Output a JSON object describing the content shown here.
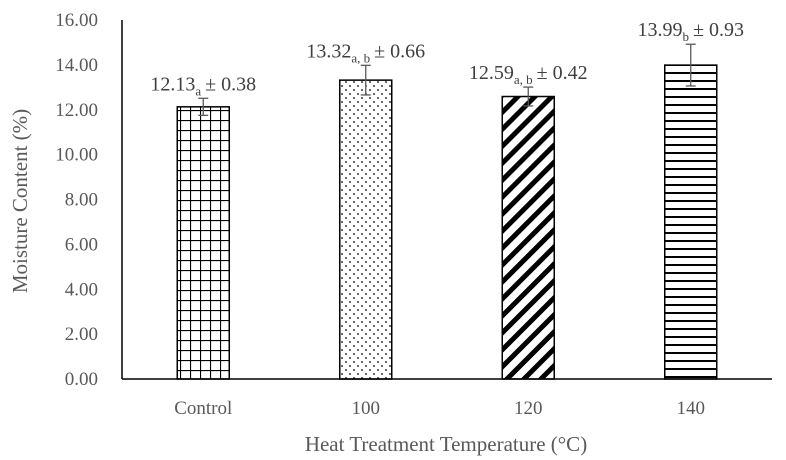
{
  "chart_data": {
    "type": "bar",
    "categories": [
      "Control",
      "100",
      "120",
      "140"
    ],
    "values": [
      12.13,
      13.32,
      12.59,
      13.99
    ],
    "errors": [
      0.38,
      0.66,
      0.42,
      0.93
    ],
    "significance": [
      "a",
      "a, b",
      "a, b",
      "b"
    ],
    "data_labels": [
      {
        "value": "12.13",
        "sub": "a",
        "err": "± 0.38"
      },
      {
        "value": "13.32",
        "sub": "a, b",
        "err": "± 0.66"
      },
      {
        "value": "12.59",
        "sub": "a, b",
        "err": "± 0.42"
      },
      {
        "value": "13.99",
        "sub": "b",
        "err": "± 0.93"
      }
    ],
    "patterns": [
      "grid",
      "dots",
      "diagonal-stripes",
      "horizontal-lines"
    ],
    "ylim": [
      0,
      16
    ],
    "yticks": [
      "0.00",
      "2.00",
      "4.00",
      "6.00",
      "8.00",
      "10.00",
      "12.00",
      "14.00",
      "16.00"
    ],
    "xlabel": "Heat Treatment Temperature (°C)",
    "ylabel": "Moisture Content (%)",
    "grid": false,
    "legend": "none",
    "colors": {
      "bar_outline": "#000000",
      "bar_fill": "#ffffff",
      "axis": "#000000",
      "text": "#595959",
      "label": "#404040"
    }
  }
}
